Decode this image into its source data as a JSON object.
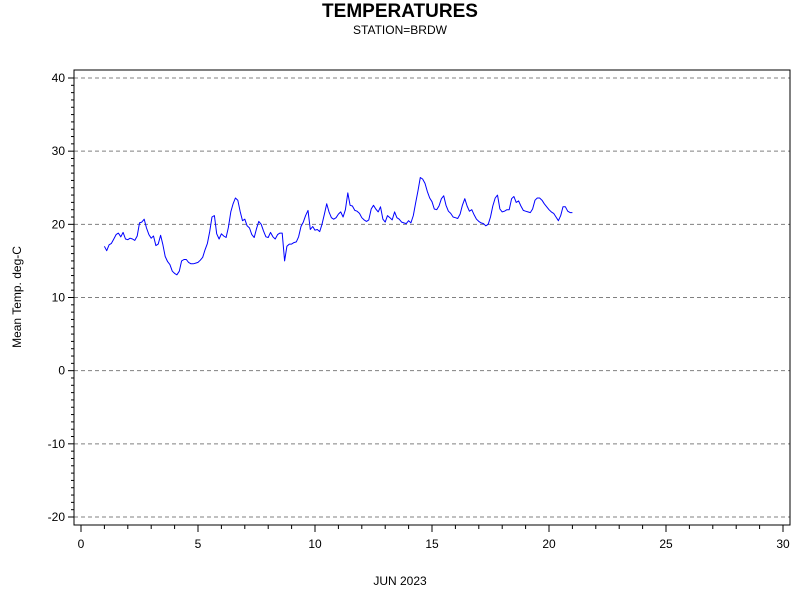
{
  "chart_data": {
    "type": "line",
    "title": "TEMPERATURES",
    "subtitle": "STATION=BRDW",
    "xlabel": "JUN 2023",
    "ylabel": "Mean Temp. deg-C",
    "xlim": [
      0,
      30
    ],
    "ylim": [
      -20,
      40
    ],
    "x_ticks": [
      0,
      5,
      10,
      15,
      20,
      25,
      30
    ],
    "y_ticks": [
      -20,
      -10,
      0,
      10,
      20,
      30,
      40
    ],
    "grid": "horizontal-dashed",
    "line_color": "#0000ff",
    "series": [
      {
        "x": [
          1.0,
          1.1,
          1.2,
          1.3,
          1.4,
          1.5,
          1.6,
          1.7,
          1.8,
          1.9,
          2.0,
          2.1,
          2.2,
          2.3,
          2.4,
          2.5,
          2.6,
          2.7,
          2.8,
          2.9,
          3.0,
          3.1,
          3.2,
          3.3,
          3.4,
          3.5,
          3.6,
          3.7,
          3.8,
          3.9,
          4.0,
          4.1,
          4.2,
          4.3,
          4.4,
          4.5,
          4.6,
          4.7,
          4.8,
          4.9,
          5.0,
          5.1,
          5.2,
          5.3,
          5.4,
          5.5,
          5.6,
          5.7,
          5.8,
          5.9,
          6.0,
          6.1,
          6.2,
          6.3,
          6.4,
          6.5,
          6.6,
          6.7,
          6.8,
          6.9,
          7.0,
          7.1,
          7.2,
          7.3,
          7.4,
          7.5,
          7.6,
          7.7,
          7.8,
          7.9,
          8.0,
          8.1,
          8.2,
          8.3,
          8.4,
          8.5,
          8.6,
          8.7,
          8.8,
          8.9,
          9.0,
          9.1,
          9.2,
          9.3,
          9.4,
          9.5,
          9.6,
          9.7,
          9.8,
          9.9,
          10.0,
          10.1,
          10.2,
          10.3,
          10.4,
          10.5,
          10.6,
          10.7,
          10.8,
          10.9,
          11.0,
          11.1,
          11.2,
          11.3,
          11.4,
          11.5,
          11.6,
          11.7,
          11.8,
          11.9,
          12.0,
          12.1,
          12.2,
          12.3,
          12.4,
          12.5,
          12.6,
          12.7,
          12.8,
          12.9,
          13.0,
          13.1,
          13.2,
          13.3,
          13.4,
          13.5,
          13.6,
          13.7,
          13.8,
          13.9,
          14.0,
          14.1,
          14.2,
          14.3,
          14.4,
          14.5,
          14.6,
          14.7,
          14.8,
          14.9,
          15.0,
          15.1,
          15.2,
          15.3,
          15.4,
          15.5,
          15.6,
          15.7,
          15.8,
          15.9,
          16.0,
          16.1,
          16.2,
          16.3,
          16.4,
          16.5,
          16.6,
          16.7,
          16.8,
          16.9,
          17.0,
          17.1,
          17.2,
          17.3,
          17.4,
          17.5,
          17.6,
          17.7,
          17.8,
          17.9,
          18.0,
          18.1,
          18.2,
          18.3,
          18.4,
          18.5,
          18.6,
          18.7,
          18.8,
          18.9,
          19.0,
          19.1,
          19.2,
          19.3,
          19.4,
          19.5,
          19.6,
          19.7,
          19.8,
          19.9,
          20.0,
          20.1,
          20.2,
          20.3,
          20.4,
          20.5,
          20.6,
          20.7,
          20.8,
          20.9,
          21.0
        ],
        "y": [
          17.0,
          16.4,
          17.2,
          17.4,
          18.0,
          18.6,
          18.8,
          18.3,
          18.9,
          18.0,
          17.9,
          18.1,
          18.0,
          17.8,
          18.4,
          20.2,
          20.3,
          20.7,
          19.5,
          18.6,
          18.1,
          18.4,
          17.1,
          17.3,
          18.5,
          17.2,
          15.6,
          14.9,
          14.5,
          13.6,
          13.3,
          13.1,
          13.6,
          15.0,
          15.2,
          15.2,
          14.8,
          14.6,
          14.6,
          14.7,
          14.8,
          15.1,
          15.5,
          16.5,
          17.4,
          19.0,
          21.0,
          21.2,
          18.7,
          18.0,
          18.7,
          18.4,
          18.2,
          19.6,
          21.7,
          22.8,
          23.6,
          23.3,
          21.8,
          20.5,
          20.7,
          19.8,
          19.5,
          18.6,
          18.2,
          19.4,
          20.4,
          20.0,
          19.1,
          18.3,
          18.2,
          18.9,
          18.3,
          18.0,
          18.6,
          18.8,
          18.8,
          15.0,
          17.0,
          17.3,
          17.3,
          17.5,
          17.6,
          18.3,
          19.7,
          20.3,
          21.2,
          21.9,
          19.3,
          19.7,
          19.2,
          19.3,
          19.0,
          20.0,
          21.4,
          22.8,
          21.7,
          20.9,
          20.7,
          20.9,
          21.4,
          21.7,
          21.0,
          22.0,
          24.3,
          22.6,
          22.5,
          21.9,
          21.8,
          21.5,
          20.9,
          20.6,
          20.4,
          20.6,
          22.1,
          22.6,
          22.1,
          21.7,
          22.4,
          20.7,
          20.3,
          21.2,
          20.9,
          20.6,
          21.7,
          20.9,
          20.7,
          20.3,
          20.2,
          20.1,
          20.5,
          20.2,
          21.2,
          22.9,
          24.6,
          26.4,
          26.2,
          25.6,
          24.5,
          23.6,
          23.1,
          22.1,
          22.0,
          22.5,
          23.5,
          23.9,
          22.6,
          21.8,
          21.5,
          21.0,
          20.9,
          20.8,
          21.4,
          22.6,
          23.5,
          22.5,
          21.8,
          22.0,
          21.3,
          20.7,
          20.4,
          20.2,
          20.1,
          19.8,
          20.0,
          21.0,
          22.5,
          23.6,
          24.0,
          22.1,
          21.7,
          21.8,
          22.0,
          22.0,
          23.5,
          23.8,
          23.0,
          23.2,
          22.5,
          21.9,
          21.8,
          21.7,
          21.6,
          22.1,
          23.3,
          23.6,
          23.6,
          23.3,
          22.8,
          22.4,
          22.0,
          21.7,
          21.5,
          21.0,
          20.5,
          21.2,
          22.4,
          22.4,
          21.8,
          21.6,
          21.6
        ]
      }
    ]
  }
}
